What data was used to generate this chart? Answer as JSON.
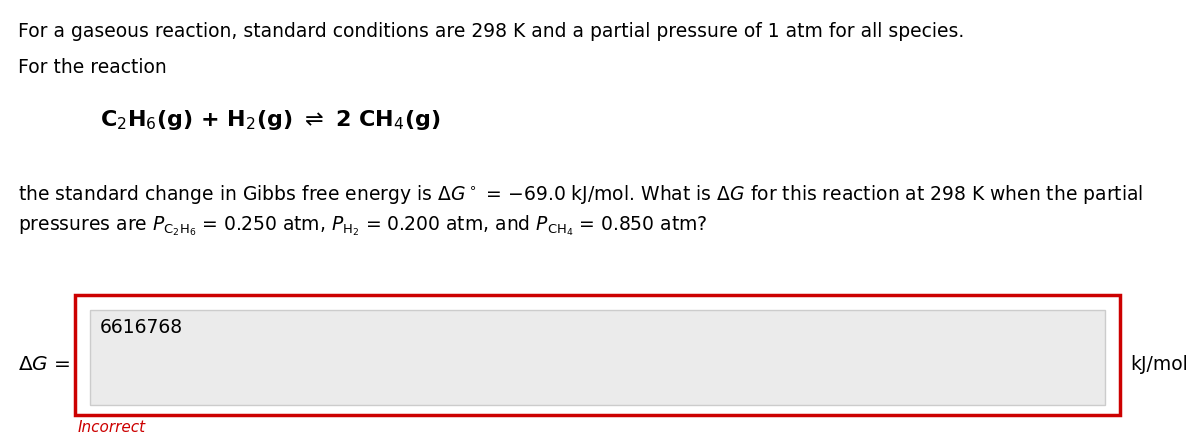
{
  "line1": "For a gaseous reaction, standard conditions are 298 K and a partial pressure of 1 atm for all species.",
  "line2": "For the reaction",
  "input_value": "6616768",
  "label_left": "$\\Delta G$ =",
  "label_right": "kJ/mol",
  "incorrect_text": "Incorrect",
  "bg_color": "#ffffff",
  "text_color": "#000000",
  "red_color": "#cc0000",
  "box_border_color": "#cc0000",
  "input_bg_color": "#ebebeb",
  "input_border_color": "#cccccc",
  "font_size_main": 13.5,
  "font_size_reaction": 16,
  "font_size_incorrect": 11,
  "fig_width": 12.0,
  "fig_height": 4.37,
  "dpi": 100
}
